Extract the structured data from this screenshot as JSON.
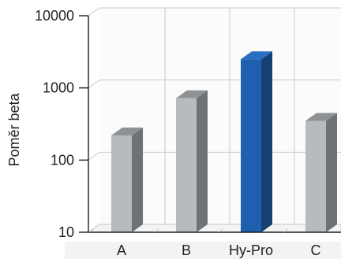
{
  "chart_data": {
    "type": "bar",
    "categories": [
      "A",
      "B",
      "Hy-Pro",
      "C"
    ],
    "values": [
      220,
      720,
      2500,
      350
    ],
    "title": "",
    "xlabel": "",
    "ylabel": "Poměr beta",
    "ylim": [
      10,
      10000
    ],
    "yscale": "log",
    "yticks": [
      "10000",
      "1000",
      "100",
      "10"
    ],
    "grid": true,
    "highlight_category": "Hy-Pro",
    "colors": {
      "bar_front": "#b8bbbe",
      "bar_side": "#6f7275",
      "bar_top": "#8f9295",
      "highlight_front": "#1f5fb0",
      "highlight_side": "#163f73",
      "highlight_top": "#2a6fc1"
    }
  }
}
